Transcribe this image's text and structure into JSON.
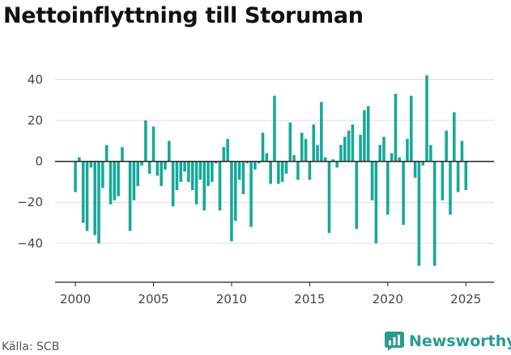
{
  "title": "Nettoinflyttning till Storuman",
  "source": "Källa: SCB",
  "brand": {
    "name": "Newsworthy",
    "logo": "newsworthy-chart-icon"
  },
  "colors": {
    "bar": "#16a89a",
    "grid": "#dcdcdc",
    "axis": "#222222",
    "brand": "#2a9c8f"
  },
  "chart_data": {
    "type": "bar",
    "xlim": [
      1998.7,
      2026.8
    ],
    "ylim": [
      -59,
      48
    ],
    "ytick_values": [
      -40,
      -20,
      0,
      20,
      40
    ],
    "ytick_labels": [
      "−40",
      "−20",
      "0",
      "20",
      "40"
    ],
    "xtick_values": [
      2000,
      2005,
      2010,
      2015,
      2020,
      2025
    ],
    "xtick_labels": [
      "2000",
      "2005",
      "2010",
      "2015",
      "2020",
      "2025"
    ],
    "grid": true,
    "series": [
      {
        "x": [
          2000.0,
          2000.25,
          2000.5,
          2000.75,
          2001.0,
          2001.25,
          2001.5,
          2001.75,
          2002.0,
          2002.25,
          2002.5,
          2002.75,
          2003.0,
          2003.25,
          2003.5,
          2003.75,
          2004.0,
          2004.25,
          2004.5,
          2004.75,
          2005.0,
          2005.25,
          2005.5,
          2005.75,
          2006.0,
          2006.25,
          2006.5,
          2006.75,
          2007.0,
          2007.25,
          2007.5,
          2007.75,
          2008.0,
          2008.25,
          2008.5,
          2008.75,
          2009.0,
          2009.25,
          2009.5,
          2009.75,
          2010.0,
          2010.25,
          2010.5,
          2010.75,
          2011.0,
          2011.25,
          2011.5,
          2011.75,
          2012.0,
          2012.25,
          2012.5,
          2012.75,
          2013.0,
          2013.25,
          2013.5,
          2013.75,
          2014.0,
          2014.25,
          2014.5,
          2014.75,
          2015.0,
          2015.25,
          2015.5,
          2015.75,
          2016.0,
          2016.25,
          2016.5,
          2016.75,
          2017.0,
          2017.25,
          2017.5,
          2017.75,
          2018.0,
          2018.25,
          2018.5,
          2018.75,
          2019.0,
          2019.25,
          2019.5,
          2019.75,
          2020.0,
          2020.25,
          2020.5,
          2020.75,
          2021.0,
          2021.25,
          2021.5,
          2021.75,
          2022.0,
          2022.25,
          2022.5,
          2022.75,
          2023.0,
          2023.25,
          2023.5,
          2023.75,
          2024.0,
          2024.25,
          2024.5,
          2024.75,
          2025.0,
          2025.25
        ],
        "values": [
          -15,
          2,
          -30,
          -34,
          -3,
          -36,
          -40,
          -13,
          8,
          -21,
          -19,
          -17,
          7,
          0,
          -34,
          -19,
          -12,
          -2,
          20,
          -6,
          17,
          -7,
          -12,
          -4,
          10,
          -22,
          -14,
          -10,
          -5,
          -10,
          -14,
          -21,
          -9,
          -24,
          -12,
          -10,
          -1,
          -24,
          7,
          11,
          -39,
          -29,
          -9,
          -16,
          -1,
          -32,
          -4,
          -1,
          14,
          4,
          -11,
          32,
          -11,
          -10,
          -6,
          19,
          3,
          -9,
          14,
          11,
          -9,
          18,
          8,
          29,
          2,
          -35,
          1,
          -3,
          8,
          12,
          15,
          18,
          -33,
          13,
          25,
          27,
          -19,
          -40,
          8,
          12,
          -26,
          4,
          33,
          2,
          -31,
          11,
          32,
          -8,
          -51,
          -2,
          42,
          8,
          -51,
          0,
          -19,
          15,
          -26,
          24,
          -15,
          10,
          -14,
          0
        ]
      }
    ]
  }
}
